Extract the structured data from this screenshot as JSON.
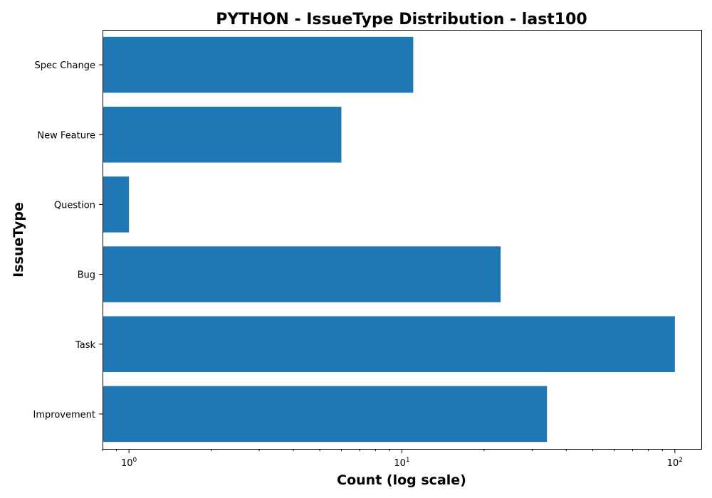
{
  "chart_data": {
    "type": "bar",
    "orientation": "horizontal",
    "title": "PYTHON - IssueType Distribution - last100",
    "xlabel": "Count (log scale)",
    "ylabel": "IssueType",
    "x_scale": "log",
    "xlim": [
      0.8,
      125
    ],
    "x_major_ticks": [
      {
        "base": "10",
        "exp": "0",
        "value": 1
      },
      {
        "base": "10",
        "exp": "1",
        "value": 10
      },
      {
        "base": "10",
        "exp": "2",
        "value": 100
      }
    ],
    "categories": [
      "Spec Change",
      "New Feature",
      "Question",
      "Bug",
      "Task",
      "Improvement"
    ],
    "values": [
      11,
      6,
      1,
      23,
      100,
      34
    ],
    "bar_color": "#1f77b4",
    "grid": false
  }
}
